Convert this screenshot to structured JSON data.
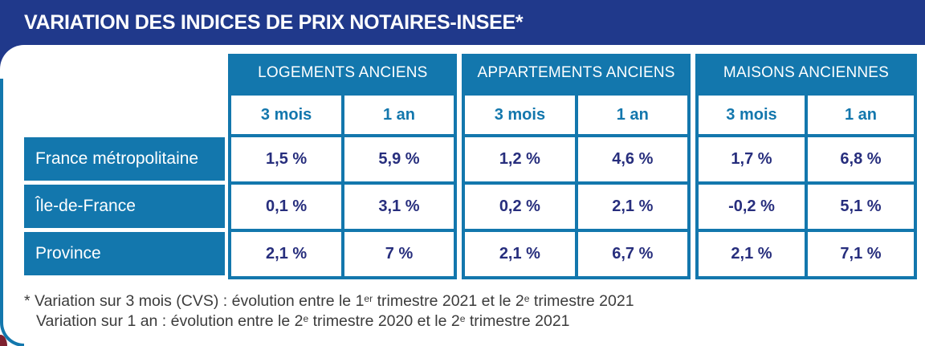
{
  "title": "VARIATION DES INDICES DE PRIX NOTAIRES-INSEE*",
  "colors": {
    "navy": "#20398b",
    "cerulean": "#1377ad",
    "value_text": "#272e7d",
    "footnote_text": "#3c3c3c",
    "corner_red": "#7e212f"
  },
  "table": {
    "groups": [
      {
        "label": "LOGEMENTS ANCIENS",
        "sub": [
          "3 mois",
          "1 an"
        ]
      },
      {
        "label": "APPARTEMENTS ANCIENS",
        "sub": [
          "3 mois",
          "1 an"
        ]
      },
      {
        "label": "MAISONS ANCIENNES",
        "sub": [
          "3 mois",
          "1 an"
        ]
      }
    ],
    "rows": [
      {
        "label": "France métropolitaine",
        "values": [
          "1,5 %",
          "5,9 %",
          "1,2 %",
          "4,6 %",
          "1,7 %",
          "6,8 %"
        ]
      },
      {
        "label": "Île-de-France",
        "values": [
          "0,1 %",
          "3,1 %",
          "0,2 %",
          "2,1 %",
          "-0,2 %",
          "5,1 %"
        ]
      },
      {
        "label": "Province",
        "values": [
          "2,1 %",
          "7 %",
          "2,1 %",
          "6,7 %",
          "2,1 %",
          "7,1 %"
        ]
      }
    ]
  },
  "footnote": {
    "line1": {
      "a": "* Variation sur 3 mois (CVS) : évolution entre le 1",
      "sup1": "er",
      "b": " trimestre 2021 et le 2",
      "sup2": "e",
      "c": " trimestre 2021"
    },
    "line2": {
      "a": "Variation sur 1 an : évolution entre le 2",
      "sup1": "e",
      "b": " trimestre 2020 et le 2",
      "sup2": "e",
      "c": " trimestre 2021"
    }
  },
  "chart_data": {
    "type": "table",
    "title": "VARIATION DES INDICES DE PRIX NOTAIRES-INSEE*",
    "column_groups": [
      "LOGEMENTS ANCIENS",
      "APPARTEMENTS ANCIENS",
      "MAISONS ANCIENNES"
    ],
    "sub_columns": [
      "3 mois",
      "1 an"
    ],
    "row_labels": [
      "France métropolitaine",
      "Île-de-France",
      "Province"
    ],
    "values_pct": [
      [
        1.5,
        5.9,
        1.2,
        4.6,
        1.7,
        6.8
      ],
      [
        0.1,
        3.1,
        0.2,
        2.1,
        -0.2,
        5.1
      ],
      [
        2.1,
        7.0,
        2.1,
        6.7,
        2.1,
        7.1
      ]
    ]
  }
}
